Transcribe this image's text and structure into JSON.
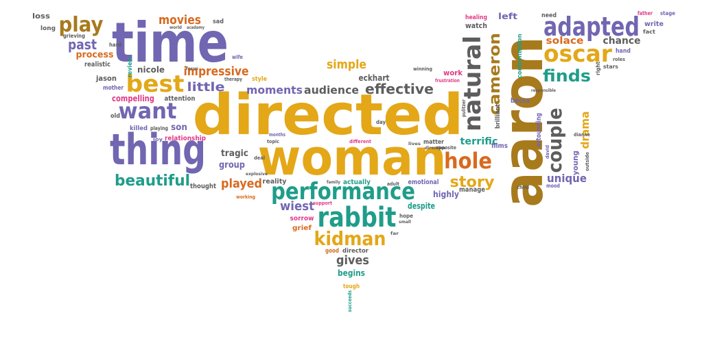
{
  "palette": {
    "purple": "#7166b1",
    "gold": "#e3a718",
    "green": "#1f9d8a",
    "orange": "#d86a1f",
    "brown": "#a77a1c",
    "gray": "#5d5d5d",
    "pink": "#e13a86"
  },
  "words": [
    {
      "text": "directed",
      "color": "gold"
    },
    {
      "text": "woman",
      "color": "gold"
    },
    {
      "text": "aaron",
      "color": "brown"
    },
    {
      "text": "time",
      "color": "purple"
    },
    {
      "text": "thing",
      "color": "purple"
    },
    {
      "text": "performance",
      "color": "green"
    },
    {
      "text": "rabbit",
      "color": "green"
    },
    {
      "text": "adapted",
      "color": "purple"
    },
    {
      "text": "oscar",
      "color": "gold"
    },
    {
      "text": "natural",
      "color": "gray"
    },
    {
      "text": "cameron",
      "color": "brown"
    },
    {
      "text": "kidman",
      "color": "gold"
    },
    {
      "text": "want",
      "color": "purple"
    },
    {
      "text": "best",
      "color": "gold"
    },
    {
      "text": "hole",
      "color": "orange"
    },
    {
      "text": "couple",
      "color": "gray"
    },
    {
      "text": "beautiful",
      "color": "green"
    },
    {
      "text": "play",
      "color": "brown"
    },
    {
      "text": "finds",
      "color": "green"
    },
    {
      "text": "story",
      "color": "gold"
    },
    {
      "text": "effective",
      "color": "gray"
    },
    {
      "text": "moments",
      "color": "purple"
    },
    {
      "text": "audience",
      "color": "gray"
    },
    {
      "text": "impressive",
      "color": "orange"
    },
    {
      "text": "movies",
      "color": "orange"
    },
    {
      "text": "past",
      "color": "purple"
    },
    {
      "text": "little",
      "color": "purple"
    },
    {
      "text": "simple",
      "color": "gold"
    },
    {
      "text": "eckhart",
      "color": "gray"
    },
    {
      "text": "wiest",
      "color": "purple"
    },
    {
      "text": "gives",
      "color": "gray"
    },
    {
      "text": "played",
      "color": "orange"
    },
    {
      "text": "drama",
      "color": "gold"
    },
    {
      "text": "unique",
      "color": "purple"
    },
    {
      "text": "solace",
      "color": "orange"
    },
    {
      "text": "chance",
      "color": "gray"
    },
    {
      "text": "terrific",
      "color": "green"
    },
    {
      "text": "compelling",
      "color": "pink"
    },
    {
      "text": "process",
      "color": "orange"
    },
    {
      "text": "tragic",
      "color": "gray"
    },
    {
      "text": "group",
      "color": "purple"
    },
    {
      "text": "nicole",
      "color": "gray"
    },
    {
      "text": "left",
      "color": "purple"
    },
    {
      "text": "watch",
      "color": "gray"
    },
    {
      "text": "young",
      "color": "purple"
    },
    {
      "text": "begins",
      "color": "green"
    },
    {
      "text": "highly",
      "color": "purple"
    },
    {
      "text": "loss",
      "color": "gray"
    },
    {
      "text": "long",
      "color": "gray"
    },
    {
      "text": "grieving",
      "color": "gray"
    },
    {
      "text": "hard",
      "color": "gray"
    },
    {
      "text": "realistic",
      "color": "gray"
    },
    {
      "text": "review",
      "color": "green"
    },
    {
      "text": "jason",
      "color": "gray"
    },
    {
      "text": "mother",
      "color": "purple"
    },
    {
      "text": "attention",
      "color": "gray"
    },
    {
      "text": "son",
      "color": "purple"
    },
    {
      "text": "relationship",
      "color": "pink"
    },
    {
      "text": "thought",
      "color": "gray"
    },
    {
      "text": "reality",
      "color": "gray"
    },
    {
      "text": "actually",
      "color": "green"
    },
    {
      "text": "emotional",
      "color": "purple"
    },
    {
      "text": "manage",
      "color": "gray"
    },
    {
      "text": "despite",
      "color": "green"
    },
    {
      "text": "sorrow",
      "color": "pink"
    },
    {
      "text": "grief",
      "color": "orange"
    },
    {
      "text": "director",
      "color": "gray"
    },
    {
      "text": "good",
      "color": "orange"
    },
    {
      "text": "matter",
      "color": "gray"
    },
    {
      "text": "films",
      "color": "purple"
    },
    {
      "text": "becca",
      "color": "purple"
    },
    {
      "text": "work",
      "color": "pink"
    },
    {
      "text": "brilliant",
      "color": "gray"
    },
    {
      "text": "astounding",
      "color": "purple"
    },
    {
      "text": "confrontation",
      "color": "green"
    },
    {
      "text": "healing",
      "color": "pink"
    },
    {
      "text": "need",
      "color": "gray"
    },
    {
      "text": "father",
      "color": "pink"
    },
    {
      "text": "stage",
      "color": "purple"
    },
    {
      "text": "write",
      "color": "purple"
    },
    {
      "text": "fact",
      "color": "gray"
    },
    {
      "text": "hand",
      "color": "purple"
    },
    {
      "text": "stars",
      "color": "gray"
    },
    {
      "text": "right",
      "color": "gray"
    },
    {
      "text": "roles",
      "color": "gray"
    },
    {
      "text": "sad",
      "color": "gray"
    },
    {
      "text": "old",
      "color": "gray"
    },
    {
      "text": "killed",
      "color": "purple"
    },
    {
      "text": "playing",
      "color": "gray"
    },
    {
      "text": "joy",
      "color": "purple"
    },
    {
      "text": "style",
      "color": "gold"
    },
    {
      "text": "wife",
      "color": "purple"
    },
    {
      "text": "deal",
      "color": "gray"
    },
    {
      "text": "topic",
      "color": "gray"
    },
    {
      "text": "months",
      "color": "purple"
    },
    {
      "text": "day",
      "color": "gray"
    },
    {
      "text": "different",
      "color": "pink"
    },
    {
      "text": "hope",
      "color": "gray"
    },
    {
      "text": "adult",
      "color": "gray"
    },
    {
      "text": "tough",
      "color": "gold"
    },
    {
      "text": "succeeds",
      "color": "green"
    },
    {
      "text": "mood",
      "color": "purple"
    },
    {
      "text": "child",
      "color": "gray"
    },
    {
      "text": "outside",
      "color": "gray"
    },
    {
      "text": "dianne",
      "color": "gray"
    },
    {
      "text": "david",
      "color": "purple"
    },
    {
      "text": "opposite",
      "color": "gray"
    },
    {
      "text": "winning",
      "color": "gray"
    },
    {
      "text": "working",
      "color": "orange"
    },
    {
      "text": "support",
      "color": "pink"
    },
    {
      "text": "explosive",
      "color": "gray"
    },
    {
      "text": "therapy",
      "color": "gray"
    },
    {
      "text": "focus",
      "color": "gray"
    },
    {
      "text": "world",
      "color": "gray"
    },
    {
      "text": "acadamy",
      "color": "gray"
    },
    {
      "text": "small",
      "color": "gray"
    },
    {
      "text": "far",
      "color": "gray"
    },
    {
      "text": "lives",
      "color": "gray"
    },
    {
      "text": "direction",
      "color": "gray"
    },
    {
      "text": "family",
      "color": "gray"
    },
    {
      "text": "frustration",
      "color": "pink"
    },
    {
      "text": "pulitzer",
      "color": "gray"
    },
    {
      "text": "responsible",
      "color": "gray"
    }
  ]
}
